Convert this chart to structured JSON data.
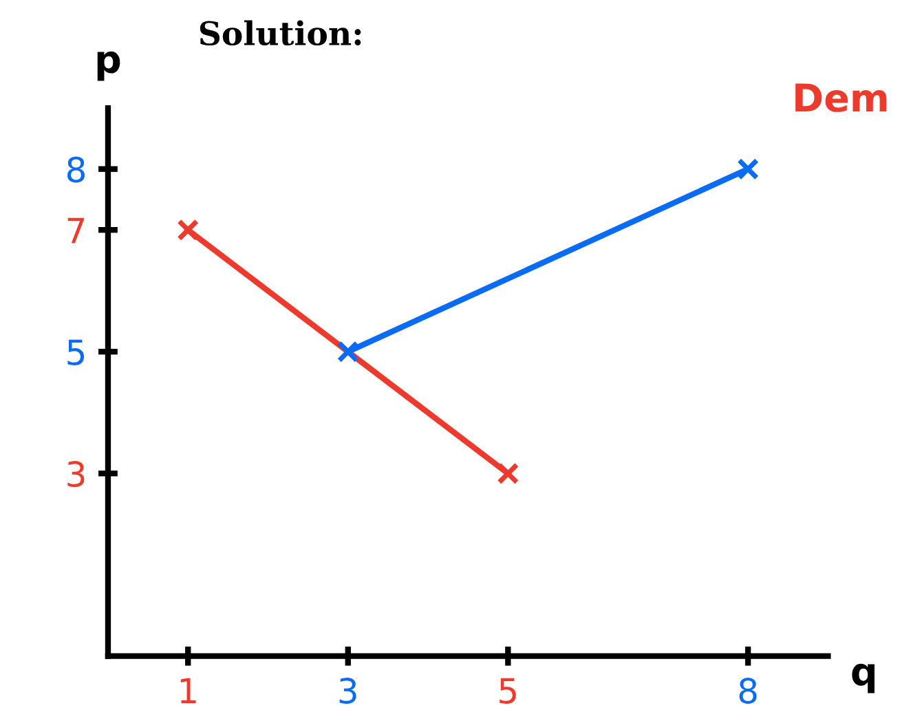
{
  "chart_data": {
    "type": "line",
    "title": "Solution:",
    "xlabel": "q",
    "ylabel": "p",
    "annotations": [
      "Dem"
    ],
    "xlim": [
      0,
      9
    ],
    "ylim": [
      0,
      9
    ],
    "xticks": [
      1,
      3,
      5,
      8
    ],
    "yticks": [
      3,
      5,
      7,
      8
    ],
    "grid": false,
    "marker": "cross",
    "line_style": "solid",
    "series": [
      {
        "color": "#ee3a2c",
        "x": [
          1,
          5
        ],
        "values": [
          7,
          3
        ]
      },
      {
        "color": "#0a6cf5",
        "x": [
          3,
          8
        ],
        "values": [
          5,
          8
        ]
      }
    ]
  }
}
